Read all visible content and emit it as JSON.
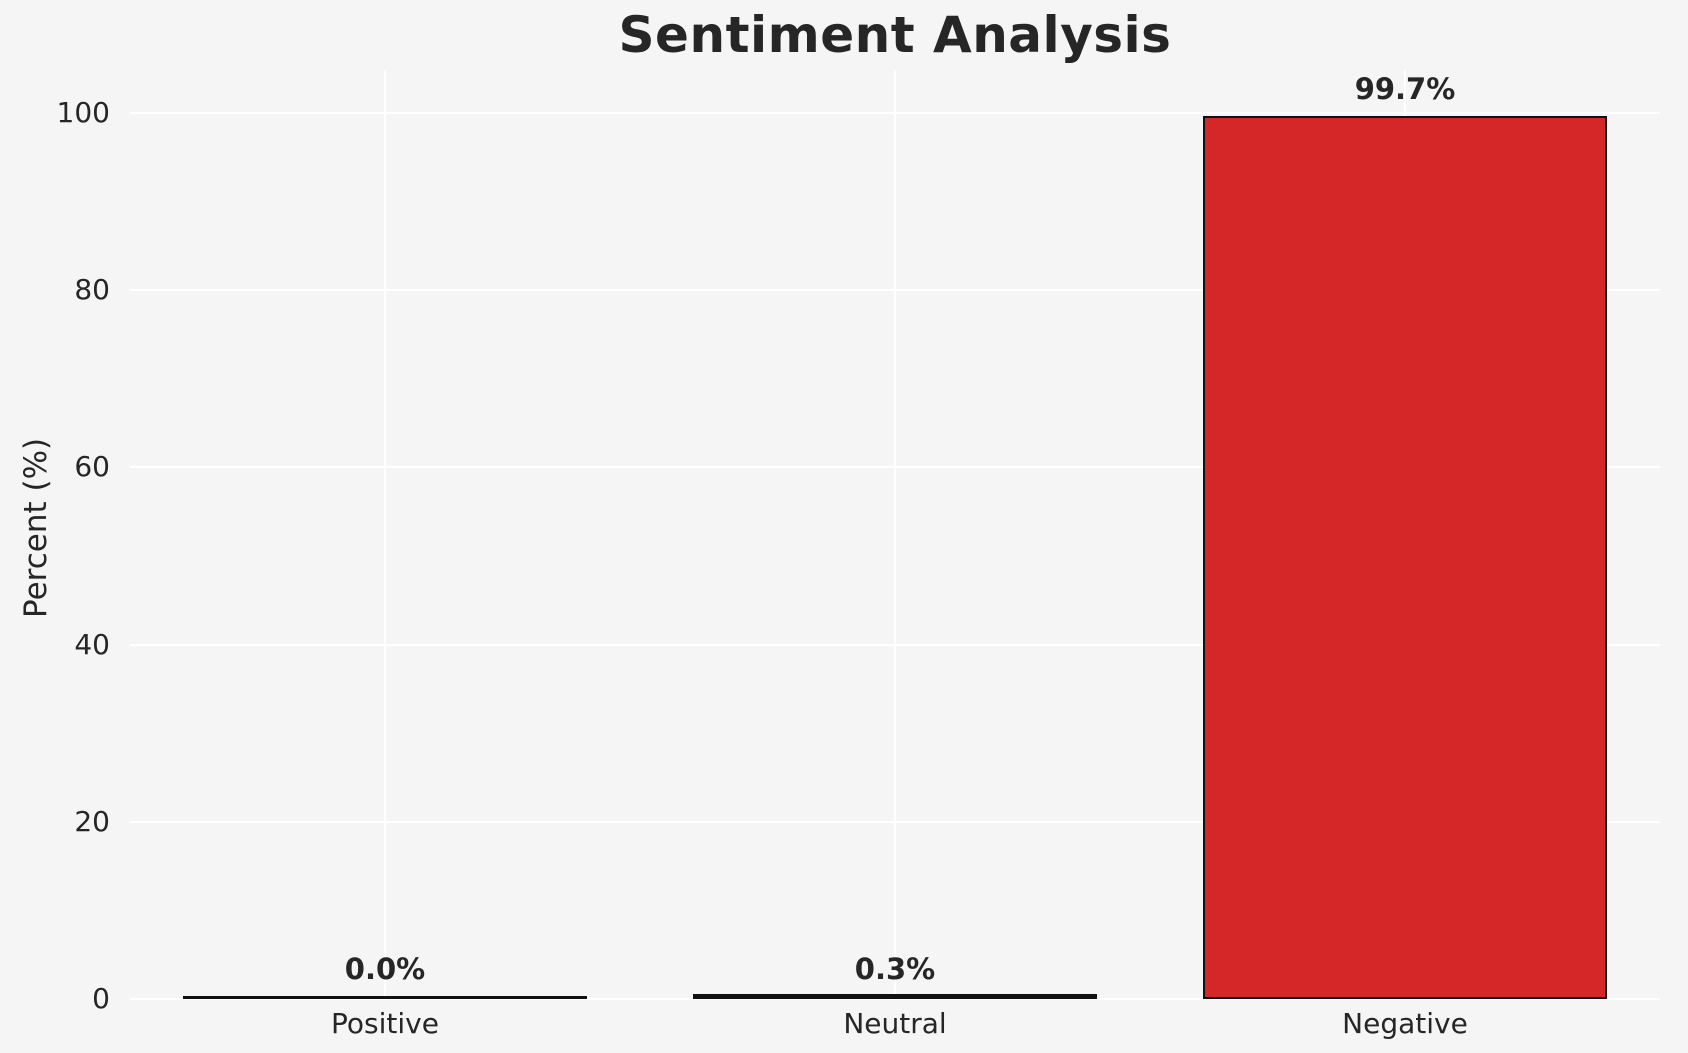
{
  "chart_data": {
    "type": "bar",
    "title": "Sentiment Analysis",
    "xlabel": "",
    "ylabel": "Percent (%)",
    "categories": [
      "Positive",
      "Neutral",
      "Negative"
    ],
    "values": [
      0.0,
      0.3,
      99.7
    ],
    "value_labels": [
      "0.0%",
      "0.3%",
      "99.7%"
    ],
    "ylim": [
      0,
      100
    ],
    "yticks": [
      0,
      20,
      40,
      60,
      80,
      100
    ],
    "grid": "both",
    "legend": "none",
    "colors": {
      "bar_fill": "#d62728",
      "bar_edge": "#111111",
      "background": "#f5f5f5",
      "gridline": "#ffffff",
      "text": "#262626"
    }
  }
}
